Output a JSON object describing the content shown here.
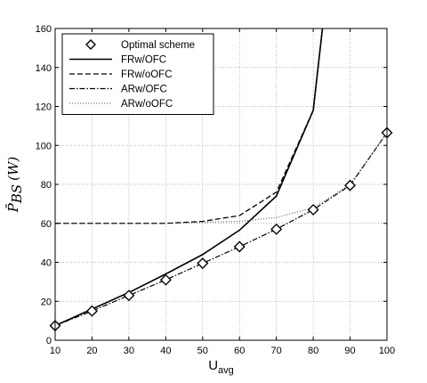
{
  "chart_data": {
    "type": "line",
    "xlabel": "U",
    "xlabel_sub": "avg",
    "ylabel_main": "P̄",
    "ylabel_sub": "BS",
    "ylabel_unit": "(W)",
    "xlim": [
      10,
      100
    ],
    "ylim": [
      0,
      160
    ],
    "xticks": [
      10,
      20,
      30,
      40,
      50,
      60,
      70,
      80,
      90,
      100
    ],
    "yticks": [
      0,
      20,
      40,
      60,
      80,
      100,
      120,
      140,
      160
    ],
    "grid": true,
    "legend_position": "top-left",
    "series": [
      {
        "name": "Optimal scheme",
        "style": "diamond-markers",
        "x": [
          10,
          20,
          30,
          40,
          50,
          60,
          70,
          80,
          90,
          100
        ],
        "y": [
          7.5,
          15,
          23,
          31,
          39.5,
          48,
          57,
          67,
          79.5,
          106.5
        ]
      },
      {
        "name": "FRw/OFC",
        "style": "solid",
        "x": [
          10,
          20,
          30,
          40,
          50,
          60,
          70,
          80,
          82.5
        ],
        "y": [
          7.5,
          16,
          24.5,
          34,
          44,
          56.5,
          74,
          118,
          160
        ]
      },
      {
        "name": "FRw/oOFC",
        "style": "dashed",
        "x": [
          10,
          20,
          30,
          40,
          50,
          60,
          70,
          80,
          82.5
        ],
        "y": [
          60,
          60,
          60,
          60,
          61,
          64,
          76,
          118,
          160
        ]
      },
      {
        "name": "ARw/OFC",
        "style": "dashdot",
        "x": [
          10,
          20,
          30,
          40,
          50,
          60,
          70,
          80,
          90,
          100
        ],
        "y": [
          7.5,
          15,
          23,
          31,
          39.5,
          48,
          57,
          67,
          79.5,
          106.5
        ]
      },
      {
        "name": "ARw/oOFC",
        "style": "dotted",
        "x": [
          10,
          20,
          30,
          40,
          50,
          60,
          70,
          80,
          90,
          100
        ],
        "y": [
          60,
          60,
          60,
          60,
          60.5,
          61,
          63,
          68,
          80,
          106.5
        ]
      }
    ]
  }
}
